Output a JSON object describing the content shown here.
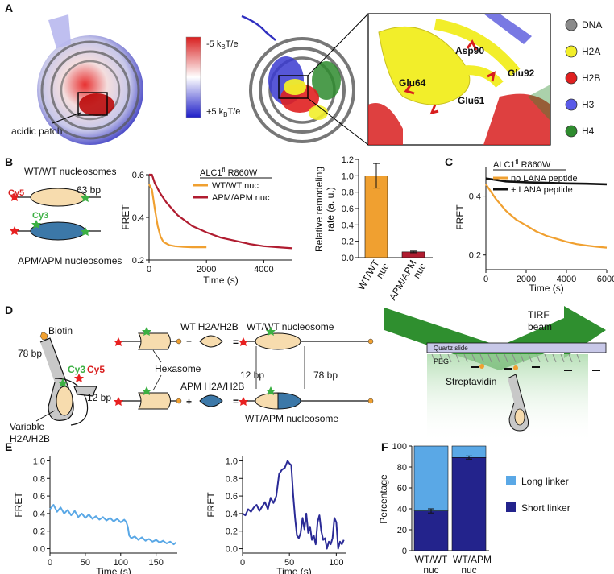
{
  "panels": {
    "A": "A",
    "B": "B",
    "C": "C",
    "D": "D",
    "E": "E",
    "F": "F"
  },
  "colors": {
    "dna": "#8a8a8a",
    "h2a": "#f2ee2a",
    "h2b": "#e02020",
    "h3": "#5b5be8",
    "h4": "#2e8b2e",
    "wt": "#f0a030",
    "apm": "#b01c30",
    "peptide": "#111111",
    "light_blue": "#5aa8e6",
    "dark_blue": "#23238c",
    "trace_blue": "#2a2a96",
    "nuc_fill": "#f7dcae",
    "apm_fill": "#3c78a8"
  },
  "panelA": {
    "acidic_patch": "acidic patch",
    "scale_top": "-5 k",
    "scale_bottom": "+5 k",
    "scale_sub": "B",
    "scale_unit": "T/e",
    "residues": [
      "Asp90",
      "Glu92",
      "Glu64",
      "Glu61"
    ],
    "legend": [
      "DNA",
      "H2A",
      "H2B",
      "H3",
      "H4"
    ]
  },
  "panelB": {
    "wt_label": "WT/WT nucleosomes",
    "apm_label": "APM/APM nucleosomes",
    "cy5": "Cy5",
    "cy3": "Cy3",
    "bp63": "63 bp",
    "title": "ALC1",
    "title_sup": "fl",
    "title_rest": " R860W",
    "legend_wt": "WT/WT nuc",
    "legend_apm": "APM/APM nuc",
    "ylabel": "FRET",
    "xlabel": "Time (s)",
    "bar_ylabel_1": "Relative remodeling",
    "bar_ylabel_2": "rate (a. u.)",
    "bar_cat_1a": "WT/WT",
    "bar_cat_1b": "nuc",
    "bar_cat_2a": "APM/APM",
    "bar_cat_2b": "nuc"
  },
  "panelC": {
    "title": "ALC1",
    "title_sup": "fl",
    "title_rest": " R860W",
    "legend_no": "no LANA peptide",
    "legend_plus": "+ LANA peptide",
    "ylabel": "FRET",
    "xlabel": "Time (s)"
  },
  "panelD": {
    "biotin": "Biotin",
    "bp78": "78 bp",
    "cy3": "Cy3",
    "cy5": "Cy5",
    "bp12": "12 bp",
    "variable_1": "Variable",
    "variable_2": "H2A/H2B",
    "wt_h2a": "WT H2A/H2B",
    "apm_h2a": "APM H2A/H2B",
    "hexasome": "Hexasome",
    "wtwt_nuc": "WT/WT nucleosome",
    "wtapm_nuc": "WT/APM nucleosome",
    "plus": "+",
    "equals": "=",
    "tirf_1": "TIRF",
    "tirf_2": "beam",
    "quartz": "Quartz slide",
    "peg": "PEG",
    "strep": "Streptavidin"
  },
  "panelE": {
    "ylabel": "FRET",
    "xlabel": "Time (s)"
  },
  "panelF": {
    "ylabel": "Percentage",
    "cat_1a": "WT/WT",
    "cat_1b": "nuc",
    "cat_2a": "WT/APM",
    "cat_2b": "nuc",
    "legend_long": "Long linker",
    "legend_short": "Short linker"
  },
  "chart_data": [
    {
      "type": "line",
      "panel": "B-middle",
      "title": "ALC1fl R860W",
      "xlabel": "Time (s)",
      "ylabel": "FRET",
      "xlim": [
        0,
        5000
      ],
      "ylim": [
        0.2,
        0.6
      ],
      "xticks": [
        0,
        2000,
        4000
      ],
      "yticks": [
        0.2,
        0.4,
        0.6
      ],
      "series": [
        {
          "name": "WT/WT nuc",
          "x": [
            0,
            100,
            200,
            300,
            400,
            500,
            700,
            900,
            1200,
            1500,
            2000
          ],
          "y": [
            0.555,
            0.53,
            0.44,
            0.36,
            0.31,
            0.285,
            0.27,
            0.265,
            0.262,
            0.26,
            0.26
          ]
        },
        {
          "name": "APM/APM nuc",
          "x": [
            0,
            100,
            200,
            400,
            600,
            800,
            1000,
            1500,
            2000,
            2500,
            3000,
            3500,
            4000,
            4500,
            5000
          ],
          "y": [
            0.6,
            0.6,
            0.56,
            0.51,
            0.47,
            0.44,
            0.41,
            0.36,
            0.33,
            0.305,
            0.29,
            0.275,
            0.265,
            0.26,
            0.255
          ]
        }
      ]
    },
    {
      "type": "bar",
      "panel": "B-right",
      "ylabel": "Relative remodeling rate (a. u.)",
      "categories": [
        "WT/WT nuc",
        "APM/APM nuc"
      ],
      "values": [
        1.0,
        0.07
      ],
      "errors": [
        0.15,
        0.01
      ],
      "ylim": [
        0,
        1.2
      ],
      "yticks": [
        0,
        0.2,
        0.4,
        0.6,
        0.8,
        1.0,
        1.2
      ],
      "colors": [
        "#f0a030",
        "#b01c30"
      ]
    },
    {
      "type": "line",
      "panel": "C",
      "title": "ALC1fl R860W",
      "xlabel": "Time (s)",
      "ylabel": "FRET",
      "xlim": [
        0,
        6000
      ],
      "ylim": [
        0.15,
        0.5
      ],
      "xticks": [
        0,
        2000,
        4000,
        6000
      ],
      "yticks": [
        0.2,
        0.4
      ],
      "series": [
        {
          "name": "no LANA peptide",
          "x": [
            0,
            200,
            500,
            1000,
            1500,
            2000,
            2500,
            3000,
            3500,
            4000,
            4500,
            5000,
            5500,
            6000
          ],
          "y": [
            0.44,
            0.42,
            0.39,
            0.35,
            0.32,
            0.3,
            0.28,
            0.265,
            0.255,
            0.245,
            0.237,
            0.232,
            0.228,
            0.225
          ]
        },
        {
          "name": "+ LANA peptide",
          "x": [
            0,
            500,
            1000,
            2000,
            3000,
            4000,
            5000,
            6000
          ],
          "y": [
            0.46,
            0.455,
            0.45,
            0.447,
            0.445,
            0.443,
            0.442,
            0.44
          ]
        }
      ]
    },
    {
      "type": "line",
      "panel": "E-left",
      "xlabel": "Time (s)",
      "ylabel": "FRET",
      "xlim": [
        0,
        180
      ],
      "ylim": [
        -0.05,
        1.05
      ],
      "xticks": [
        0,
        50,
        100,
        150
      ],
      "yticks": [
        0,
        0.2,
        0.4,
        0.6,
        0.8,
        1.0
      ],
      "series": [
        {
          "x": [
            0,
            5,
            10,
            15,
            20,
            25,
            30,
            35,
            40,
            45,
            50,
            55,
            60,
            65,
            70,
            75,
            80,
            85,
            90,
            95,
            100,
            105,
            108,
            110,
            112,
            115,
            120,
            125,
            130,
            135,
            140,
            145,
            150,
            155,
            160,
            165,
            170,
            175,
            178
          ],
          "y": [
            0.45,
            0.5,
            0.42,
            0.47,
            0.4,
            0.44,
            0.38,
            0.43,
            0.36,
            0.4,
            0.35,
            0.39,
            0.34,
            0.37,
            0.33,
            0.36,
            0.32,
            0.35,
            0.31,
            0.34,
            0.3,
            0.33,
            0.3,
            0.25,
            0.15,
            0.12,
            0.14,
            0.1,
            0.13,
            0.09,
            0.11,
            0.08,
            0.1,
            0.07,
            0.09,
            0.06,
            0.08,
            0.05,
            0.07
          ]
        }
      ]
    },
    {
      "type": "line",
      "panel": "E-right",
      "xlabel": "Time (s)",
      "ylabel": "FRET",
      "xlim": [
        0,
        110
      ],
      "ylim": [
        -0.05,
        1.05
      ],
      "xticks": [
        0,
        50,
        100
      ],
      "yticks": [
        0,
        0.2,
        0.4,
        0.6,
        0.8,
        1.0
      ],
      "series": [
        {
          "x": [
            0,
            3,
            6,
            9,
            12,
            15,
            18,
            21,
            24,
            27,
            30,
            33,
            36,
            39,
            42,
            45,
            48,
            50,
            52,
            54,
            56,
            58,
            60,
            62,
            64,
            66,
            68,
            70,
            72,
            74,
            76,
            78,
            80,
            82,
            84,
            86,
            88,
            90,
            92,
            94,
            96,
            98,
            100,
            102,
            104,
            106,
            108
          ],
          "y": [
            0.4,
            0.38,
            0.45,
            0.42,
            0.47,
            0.5,
            0.43,
            0.48,
            0.53,
            0.45,
            0.58,
            0.52,
            0.6,
            0.85,
            0.9,
            0.92,
            1.0,
            0.97,
            0.95,
            0.62,
            0.35,
            0.15,
            0.12,
            0.18,
            0.35,
            0.22,
            0.4,
            0.18,
            0.25,
            0.1,
            0.15,
            0.05,
            0.3,
            0.38,
            0.2,
            0.1,
            0.12,
            0.0,
            0.08,
            0.05,
            0.12,
            0.35,
            0.3,
            0.0,
            0.08,
            0.05,
            0.1
          ]
        }
      ]
    },
    {
      "type": "bar",
      "panel": "F",
      "ylabel": "Percentage",
      "categories": [
        "WT/WT nuc",
        "WT/APM nuc"
      ],
      "series": [
        {
          "name": "Short linker",
          "values": [
            38,
            89
          ]
        },
        {
          "name": "Long linker",
          "values": [
            62,
            11
          ]
        }
      ],
      "errors": [
        2,
        1.5
      ],
      "ylim": [
        0,
        100
      ],
      "yticks": [
        0,
        20,
        40,
        60,
        80,
        100
      ]
    }
  ]
}
